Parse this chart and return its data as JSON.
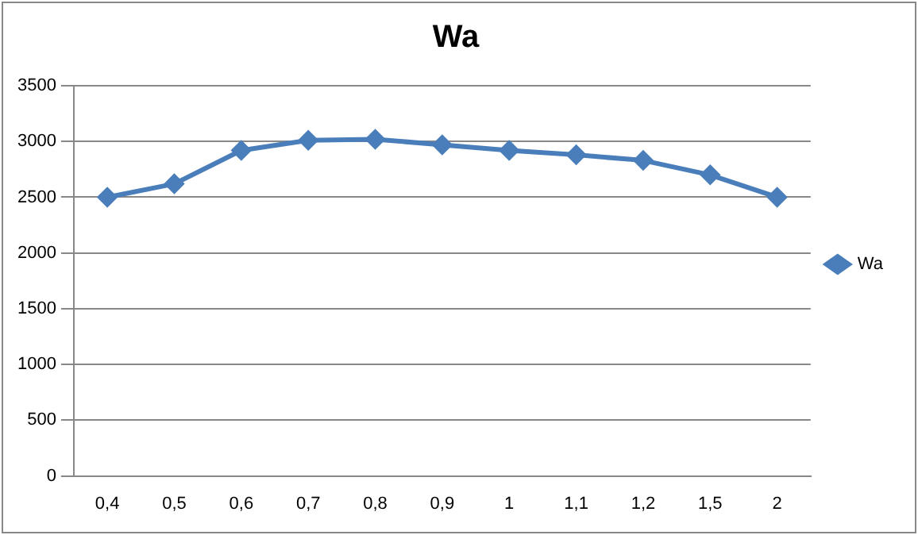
{
  "chart_data": {
    "type": "line",
    "title": "Wa",
    "categories": [
      "0,4",
      "0,5",
      "0,6",
      "0,7",
      "0,8",
      "0,9",
      "1",
      "1,1",
      "1,2",
      "1,5",
      "2"
    ],
    "series": [
      {
        "name": "Wa",
        "color": "#4a7ebb",
        "values": [
          2500,
          2620,
          2920,
          3010,
          3020,
          2970,
          2920,
          2880,
          2830,
          2700,
          2500
        ]
      }
    ],
    "ylim": [
      0,
      3500
    ],
    "yticks": [
      0,
      500,
      1000,
      1500,
      2000,
      2500,
      3000,
      3500
    ],
    "grid": "y",
    "legend": "right",
    "marker": "diamond"
  }
}
